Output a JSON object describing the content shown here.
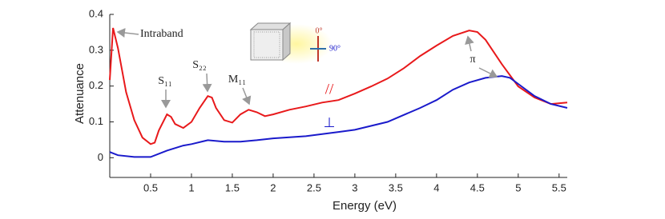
{
  "chart_data": {
    "type": "line",
    "x_label": "Energy (eV)",
    "y_label": "Attenuance",
    "xlim": [
      0,
      5.6
    ],
    "ylim": [
      -0.055,
      0.4
    ],
    "xticks": [
      0.5,
      1,
      1.5,
      2,
      2.5,
      3,
      3.5,
      4,
      4.5,
      5,
      5.5
    ],
    "yticks": [
      0,
      0.1,
      0.2,
      0.3,
      0.4
    ],
    "series": [
      {
        "name": "//",
        "color": "#e8191b",
        "x": [
          0,
          0.04,
          0.1,
          0.2,
          0.3,
          0.4,
          0.5,
          0.55,
          0.6,
          0.7,
          0.75,
          0.8,
          0.9,
          1.0,
          1.1,
          1.2,
          1.25,
          1.3,
          1.4,
          1.5,
          1.6,
          1.7,
          1.8,
          1.9,
          2.0,
          2.2,
          2.4,
          2.6,
          2.8,
          3.0,
          3.2,
          3.4,
          3.6,
          3.8,
          4.0,
          4.2,
          4.4,
          4.5,
          4.6,
          4.8,
          5.0,
          5.2,
          5.4,
          5.6
        ],
        "values": [
          0.217,
          0.362,
          0.306,
          0.183,
          0.105,
          0.056,
          0.038,
          0.042,
          0.076,
          0.121,
          0.114,
          0.094,
          0.083,
          0.1,
          0.139,
          0.172,
          0.168,
          0.139,
          0.105,
          0.098,
          0.121,
          0.134,
          0.127,
          0.116,
          0.121,
          0.134,
          0.143,
          0.154,
          0.161,
          0.179,
          0.199,
          0.221,
          0.25,
          0.284,
          0.313,
          0.34,
          0.355,
          0.351,
          0.329,
          0.261,
          0.199,
          0.168,
          0.15,
          0.154
        ]
      },
      {
        "name": "⊥",
        "color": "#1a1acb",
        "x": [
          0,
          0.1,
          0.3,
          0.5,
          0.7,
          0.9,
          1.0,
          1.2,
          1.4,
          1.6,
          1.8,
          2.0,
          2.4,
          2.8,
          3.0,
          3.4,
          3.8,
          4.0,
          4.2,
          4.4,
          4.6,
          4.8,
          4.9,
          5.0,
          5.2,
          5.4,
          5.6
        ],
        "values": [
          0.016,
          0.007,
          0.002,
          0.002,
          0.02,
          0.034,
          0.038,
          0.049,
          0.045,
          0.045,
          0.049,
          0.054,
          0.06,
          0.072,
          0.078,
          0.1,
          0.139,
          0.161,
          0.19,
          0.21,
          0.223,
          0.228,
          0.223,
          0.206,
          0.172,
          0.15,
          0.139
        ]
      }
    ],
    "annotations": [
      "Intraband",
      "S₁₁",
      "S₂₂",
      "M₁₁",
      "π",
      "0°",
      "90°"
    ]
  }
}
